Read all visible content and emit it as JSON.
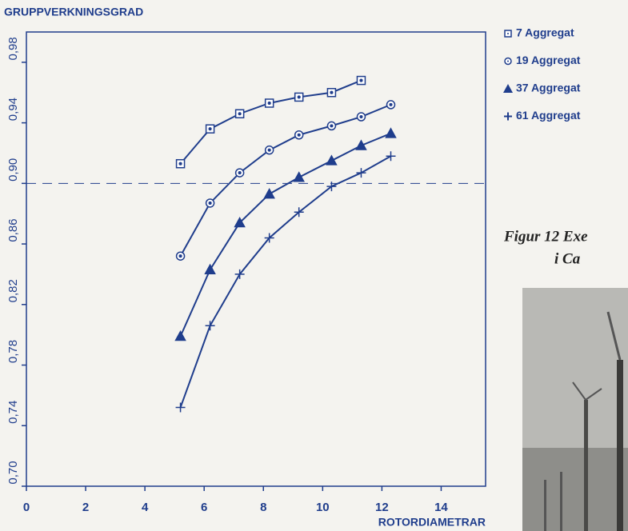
{
  "chart_data": {
    "type": "line",
    "ylabel": "GRUPPVERKNINGSGRAD",
    "xlabel": "ROTORDIAMETRAR",
    "xlim": [
      0,
      15.5
    ],
    "xticks": [
      0,
      2,
      4,
      6,
      8,
      10,
      12,
      14
    ],
    "ylim": [
      0.7,
      1.0
    ],
    "yticks": [
      {
        "value": 0.7,
        "label": "0,70"
      },
      {
        "value": 0.74,
        "label": "0,74"
      },
      {
        "value": 0.78,
        "label": "0,78"
      },
      {
        "value": 0.82,
        "label": "0,82"
      },
      {
        "value": 0.86,
        "label": "0,86"
      },
      {
        "value": 0.9,
        "label": "0,90"
      },
      {
        "value": 0.94,
        "label": "0,94"
      },
      {
        "value": 0.98,
        "label": "0,98"
      }
    ],
    "hline": 0.9,
    "color": "#1f3d8c",
    "series": [
      {
        "name": "7 Aggregat",
        "marker": "square",
        "x": [
          5.2,
          6.2,
          7.2,
          8.2,
          9.2,
          10.3,
          11.3
        ],
        "values": [
          0.913,
          0.936,
          0.946,
          0.953,
          0.957,
          0.96,
          0.968
        ]
      },
      {
        "name": "19 Aggregat",
        "marker": "circle",
        "x": [
          5.2,
          6.2,
          7.2,
          8.2,
          9.2,
          10.3,
          11.3,
          12.3
        ],
        "values": [
          0.852,
          0.887,
          0.907,
          0.922,
          0.932,
          0.938,
          0.944,
          0.952
        ]
      },
      {
        "name": "37 Aggregat",
        "marker": "triangle",
        "x": [
          5.2,
          6.2,
          7.2,
          8.2,
          9.2,
          10.3,
          11.3,
          12.3
        ],
        "values": [
          0.799,
          0.843,
          0.874,
          0.893,
          0.904,
          0.915,
          0.925,
          0.933
        ]
      },
      {
        "name": "61 Aggregat",
        "marker": "plus",
        "x": [
          5.2,
          6.2,
          7.2,
          8.2,
          9.2,
          10.3,
          11.3,
          12.3
        ],
        "values": [
          0.752,
          0.806,
          0.84,
          0.864,
          0.881,
          0.898,
          0.907,
          0.918
        ]
      }
    ]
  },
  "caption_lines": [
    "Figur 12  Exe",
    "i Ca"
  ]
}
